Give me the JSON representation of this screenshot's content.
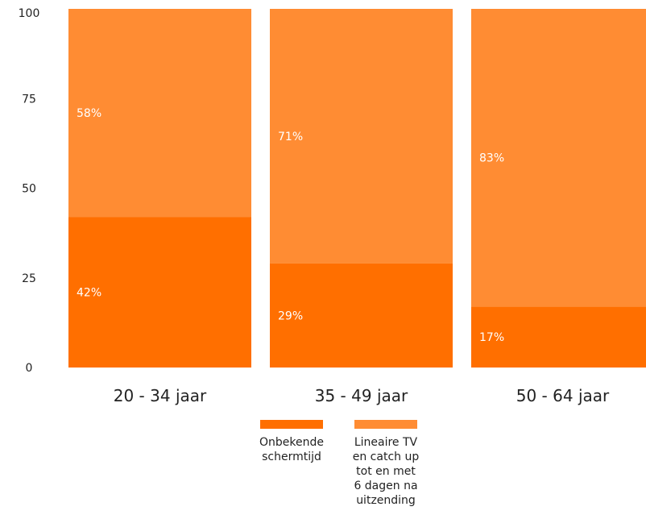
{
  "chart_data": {
    "type": "bar",
    "stacked": true,
    "categories": [
      "20 - 34 jaar",
      "35 - 49 jaar",
      "50 - 64 jaar"
    ],
    "series": [
      {
        "name": "Onbekende schermtijd",
        "values": [
          42,
          29,
          17
        ],
        "labels": [
          "42%",
          "29%",
          "17%"
        ],
        "color": "#FF6F00"
      },
      {
        "name": "Lineaire TV en catch up tot en met 6 dagen na uitzending",
        "values": [
          58,
          71,
          83
        ],
        "labels": [
          "58%",
          "71%",
          "83%"
        ],
        "color": "#FF8C33"
      }
    ],
    "ylim": [
      0,
      100
    ],
    "yticks": [
      "0",
      "25",
      "50",
      "75",
      "100"
    ],
    "grid": false,
    "legend_position": "bottom"
  },
  "legend": {
    "items": [
      {
        "label_lines": [
          "Onbekende",
          "schermtijd"
        ]
      },
      {
        "label_lines": [
          "Lineaire TV",
          "en catch up",
          "tot en met",
          "6 dagen na",
          "uitzending"
        ]
      }
    ]
  }
}
